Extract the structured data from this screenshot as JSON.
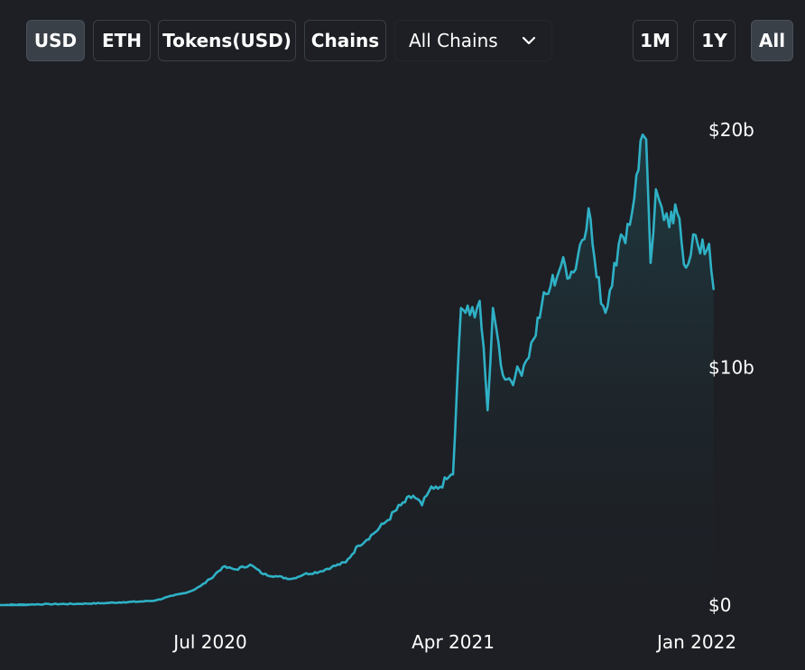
{
  "toolbar": {
    "denominations": [
      {
        "label": "USD",
        "active": true
      },
      {
        "label": "ETH",
        "active": false
      },
      {
        "label": "Tokens(USD)",
        "active": false
      },
      {
        "label": "Chains",
        "active": false
      }
    ],
    "chain_select": {
      "value": "All Chains",
      "icon": "chevron-down-icon"
    },
    "ranges": [
      {
        "label": "1M",
        "active": false
      },
      {
        "label": "1Y",
        "active": false
      },
      {
        "label": "All",
        "active": true
      }
    ]
  },
  "colors": {
    "background": "#1d1f24",
    "line": "#2fb1c6",
    "fill_top": "#1f3d44",
    "button_border": "#3a3e46",
    "button_active": "#3a4048"
  },
  "chart_data": {
    "type": "area",
    "title": "",
    "xlabel": "",
    "ylabel": "",
    "x_ticks": [
      "Jul 2020",
      "Apr 2021",
      "Jan 2022"
    ],
    "y_ticks": [
      "$0",
      "$10b",
      "$20b"
    ],
    "ylim": [
      0,
      20
    ],
    "y_unit": "billion USD",
    "grid": false,
    "legend": "none",
    "series": [
      {
        "x": [
          "2019-11-01",
          "2019-12-01",
          "2020-01-01",
          "2020-02-01",
          "2020-03-01",
          "2020-03-25",
          "2020-04-15",
          "2020-05-01",
          "2020-05-20",
          "2020-06-01",
          "2020-06-10",
          "2020-06-20",
          "2020-07-01",
          "2020-07-15",
          "2020-07-30",
          "2020-08-15",
          "2020-08-30",
          "2020-09-15",
          "2020-10-01",
          "2020-10-15",
          "2020-11-01",
          "2020-11-15",
          "2020-12-01",
          "2020-12-15",
          "2021-01-01",
          "2021-01-15",
          "2021-02-01",
          "2021-02-15",
          "2021-02-25",
          "2021-03-05",
          "2021-03-15",
          "2021-03-25",
          "2021-04-01",
          "2021-04-10",
          "2021-04-20",
          "2021-05-01",
          "2021-05-10",
          "2021-05-16",
          "2021-05-20",
          "2021-05-25",
          "2021-06-01",
          "2021-06-10",
          "2021-06-20",
          "2021-07-01",
          "2021-07-10",
          "2021-07-20",
          "2021-08-01",
          "2021-08-15",
          "2021-09-01",
          "2021-09-10",
          "2021-09-20",
          "2021-09-30",
          "2021-10-10",
          "2021-10-20",
          "2021-10-25",
          "2021-11-01",
          "2021-11-05",
          "2021-11-10",
          "2021-11-16",
          "2021-11-20",
          "2021-11-25",
          "2021-12-01",
          "2021-12-10",
          "2021-12-20",
          "2021-12-28",
          "2022-01-05",
          "2022-01-15",
          "2022-01-20"
        ],
        "y": [
          0.0,
          0.02,
          0.04,
          0.05,
          0.08,
          0.12,
          0.15,
          0.2,
          0.4,
          0.5,
          0.6,
          0.8,
          1.1,
          1.6,
          1.5,
          1.7,
          1.3,
          1.2,
          1.1,
          1.3,
          1.4,
          1.6,
          1.8,
          2.5,
          3.0,
          3.5,
          4.2,
          4.6,
          4.2,
          4.8,
          4.9,
          5.3,
          5.5,
          12.5,
          12.2,
          12.8,
          8.2,
          12.5,
          11.6,
          10.1,
          9.5,
          9.6,
          10.1,
          11.2,
          12.6,
          13.4,
          14.3,
          14.0,
          16.7,
          13.8,
          12.3,
          14.4,
          15.5,
          16.5,
          18.1,
          19.8,
          19.6,
          14.4,
          17.5,
          17.0,
          16.2,
          15.9,
          16.5,
          14.2,
          15.6,
          14.8,
          15.2,
          13.3
        ]
      }
    ]
  }
}
